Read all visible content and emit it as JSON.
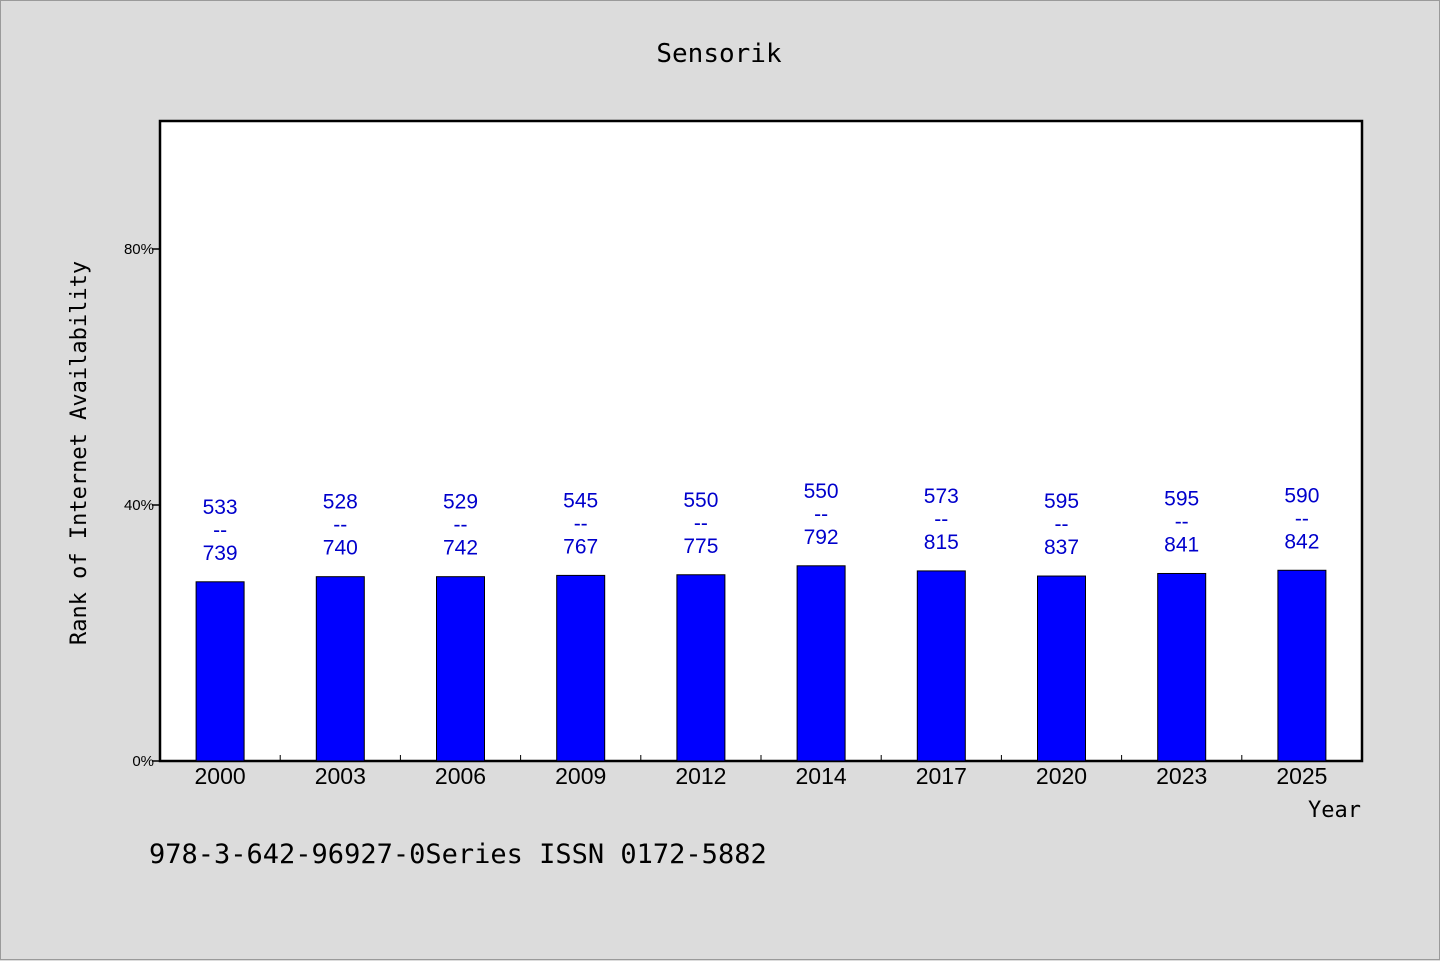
{
  "chart_data": {
    "type": "bar",
    "title": "Sensorik",
    "xlabel": "Year",
    "ylabel": "Rank of Internet Availability",
    "categories": [
      "2000",
      "2003",
      "2006",
      "2009",
      "2012",
      "2014",
      "2017",
      "2020",
      "2023",
      "2025"
    ],
    "values": [
      28,
      28.8,
      28.8,
      29,
      29.1,
      30.5,
      29.7,
      28.9,
      29.3,
      29.8
    ],
    "data_labels": [
      [
        "533",
        "--",
        "739"
      ],
      [
        "528",
        "--",
        "740"
      ],
      [
        "529",
        "--",
        "742"
      ],
      [
        "545",
        "--",
        "767"
      ],
      [
        "550",
        "--",
        "775"
      ],
      [
        "550",
        "--",
        "792"
      ],
      [
        "573",
        "--",
        "815"
      ],
      [
        "595",
        "--",
        "837"
      ],
      [
        "595",
        "--",
        "841"
      ],
      [
        "590",
        "--",
        "842"
      ]
    ],
    "yticks": [
      0,
      40,
      80
    ],
    "ytick_labels": [
      "0%",
      "40%",
      "80%"
    ],
    "ylim": [
      0,
      100
    ],
    "grid": false,
    "bar_color": "#0000ff",
    "label_color": "#0000cc"
  },
  "footer": "978-3-642-96927-0Series ISSN 0172-5882"
}
